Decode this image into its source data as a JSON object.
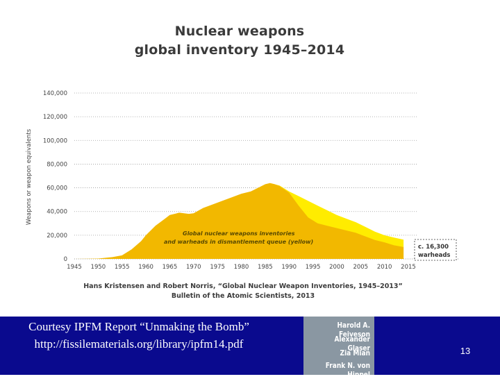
{
  "chart_data": {
    "type": "area",
    "title_lines": [
      "Nuclear weapons",
      "global inventory 1945–2014"
    ],
    "ylabel": "Weapons or weapon equivalents",
    "xlabel": "",
    "xlim": [
      1945,
      2015
    ],
    "ylim": [
      0,
      140000
    ],
    "x_ticks": [
      1945,
      1950,
      1955,
      1960,
      1965,
      1970,
      1975,
      1980,
      1985,
      1990,
      1995,
      2000,
      2005,
      2010,
      2015
    ],
    "y_ticks": [
      0,
      20000,
      40000,
      60000,
      80000,
      100000,
      120000,
      140000
    ],
    "y_tick_labels": [
      "0",
      "20,000",
      "40,000",
      "60,000",
      "80,000",
      "100,000",
      "120,000",
      "140,000"
    ],
    "grid": "horizontal dotted",
    "series": [
      {
        "color": "#f2b800",
        "x": [
          1945,
          1950,
          1953,
          1955,
          1957,
          1959,
          1960,
          1962,
          1964,
          1965,
          1967,
          1969,
          1970,
          1972,
          1974,
          1976,
          1978,
          1980,
          1982,
          1984,
          1985,
          1986,
          1987,
          1988,
          1990,
          1992,
          1994,
          1996,
          1998,
          2000,
          2002,
          2004,
          2006,
          2008,
          2010,
          2012,
          2014
        ],
        "y": [
          0,
          300,
          1500,
          3000,
          8000,
          15000,
          20000,
          28000,
          34000,
          37000,
          39000,
          38000,
          38500,
          43000,
          46000,
          49000,
          52000,
          55000,
          57000,
          61000,
          63000,
          64000,
          63000,
          61500,
          56000,
          45000,
          35000,
          30000,
          28000,
          26000,
          24000,
          22000,
          19000,
          16000,
          14000,
          11500,
          10000
        ]
      },
      {
        "color": "#ffec00",
        "x": [
          1986,
          1988,
          1990,
          1992,
          1994,
          1996,
          1998,
          2000,
          2002,
          2004,
          2006,
          2008,
          2010,
          2012,
          2014
        ],
        "y": [
          64000,
          62000,
          57000,
          53000,
          49000,
          45000,
          41000,
          37000,
          34000,
          31000,
          27000,
          23000,
          20000,
          18000,
          16300
        ]
      }
    ],
    "annotations": {
      "inventory_line1": "Global nuclear weapons inventories",
      "inventory_line2": "and warheads in dismantlement queue (yellow)",
      "callout_line1": "c. 16,300",
      "callout_line2": "warheads"
    },
    "citation_line1": "Hans Kristensen and Robert Norris, “Global Nuclear Weapon Inventories, 1945–2013”",
    "citation_line2": "Bulletin of the Atomic Scientists, 2013"
  },
  "footer": {
    "line1": "Courtesy IPFM Report “Unmaking the Bomb”",
    "line2": "http://fissilematerials.org/library/ipfm14.pdf",
    "authors": [
      "Harold A. Feiveson",
      "Alexander Glaser",
      "Zia Mian",
      "Frank N. von Hippel"
    ],
    "slide_number": "13",
    "background_color": "#0a0a8e"
  }
}
